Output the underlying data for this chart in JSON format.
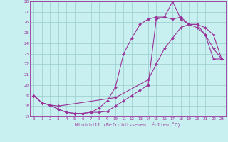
{
  "xlabel": "Windchill (Refroidissement éolien,°C)",
  "bg_color": "#c8f0f0",
  "line_color": "#993399",
  "grid_color": "#99cccc",
  "xlim": [
    -0.5,
    23.5
  ],
  "ylim": [
    17,
    28
  ],
  "yticks": [
    17,
    18,
    19,
    20,
    21,
    22,
    23,
    24,
    25,
    26,
    27,
    28
  ],
  "xticks": [
    0,
    1,
    2,
    3,
    4,
    5,
    6,
    7,
    8,
    9,
    10,
    11,
    12,
    13,
    14,
    15,
    16,
    17,
    18,
    19,
    20,
    21,
    22,
    23
  ],
  "line1_x": [
    0,
    1,
    2,
    3,
    4,
    5,
    6,
    7,
    8,
    9,
    10,
    11,
    12,
    13,
    14,
    15,
    16,
    17,
    18,
    19,
    20,
    21,
    22,
    23
  ],
  "line1_y": [
    19,
    18.3,
    18.1,
    17.7,
    17.4,
    17.3,
    17.3,
    17.4,
    17.4,
    17.5,
    18.0,
    18.5,
    19.0,
    19.5,
    20.0,
    26.3,
    26.5,
    28.0,
    26.3,
    25.8,
    25.8,
    25.5,
    24.8,
    22.5
  ],
  "line2_x": [
    0,
    1,
    2,
    3,
    4,
    5,
    6,
    7,
    8,
    9,
    10,
    11,
    12,
    13,
    14,
    15,
    16,
    17,
    18,
    19,
    20,
    21,
    22,
    23
  ],
  "line2_y": [
    19,
    18.3,
    18.1,
    17.7,
    17.4,
    17.3,
    17.3,
    17.4,
    17.8,
    18.5,
    19.8,
    23.0,
    24.5,
    25.8,
    26.3,
    26.5,
    26.5,
    26.3,
    26.5,
    25.8,
    25.5,
    24.8,
    23.5,
    22.5
  ],
  "line3_x": [
    0,
    1,
    2,
    3,
    10,
    14,
    15,
    16,
    17,
    18,
    19,
    20,
    21,
    22,
    23
  ],
  "line3_y": [
    19,
    18.3,
    18.1,
    18.0,
    18.8,
    20.5,
    22.0,
    23.5,
    24.5,
    25.5,
    25.8,
    25.8,
    24.8,
    22.5,
    22.5
  ]
}
